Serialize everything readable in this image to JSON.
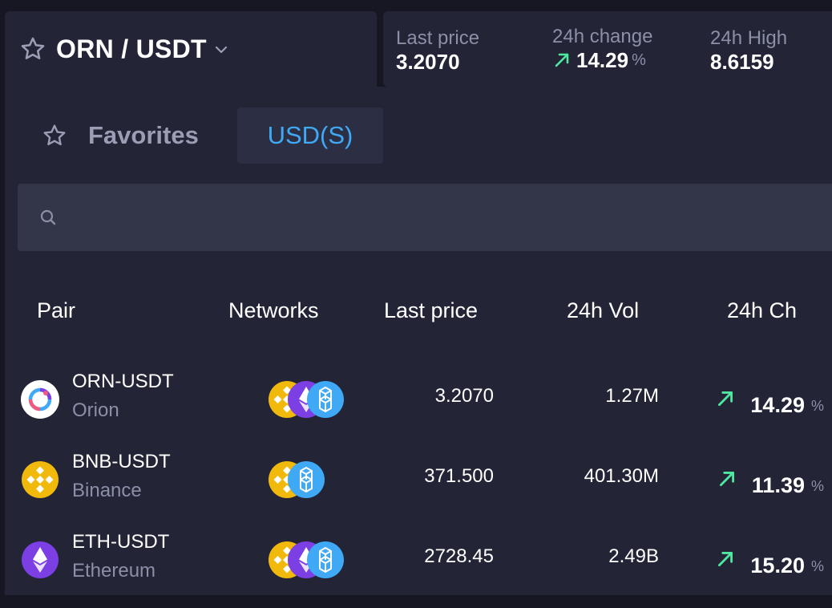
{
  "header": {
    "pair": "ORN / USDT"
  },
  "stats": {
    "last_price_label": "Last price",
    "last_price_value": "3.2070",
    "change_label": "24h change",
    "change_value": "14.29",
    "change_unit": "%",
    "high_label": "24h High",
    "high_value": "8.6159"
  },
  "tabs": {
    "favorites": "Favorites",
    "usd": "USD(S)"
  },
  "search": {
    "placeholder": "",
    "value": ""
  },
  "columns": {
    "pair": "Pair",
    "networks": "Networks",
    "last_price": "Last price",
    "vol": "24h Vol",
    "change": "24h Ch"
  },
  "rows": [
    {
      "pair": "ORN-USDT",
      "name": "Orion",
      "price": "3.2070",
      "vol": "1.27M",
      "change": "14.29",
      "unit": "%",
      "logo": "orion-logo",
      "networks": [
        "bnb-network-icon",
        "eth-network-icon",
        "fantom-network-icon"
      ]
    },
    {
      "pair": "BNB-USDT",
      "name": "Binance",
      "price": "371.500",
      "vol": "401.30M",
      "change": "11.39",
      "unit": "%",
      "logo": "binance-logo",
      "networks": [
        "bnb-network-icon",
        "fantom-network-icon"
      ]
    },
    {
      "pair": "ETH-USDT",
      "name": "Ethereum",
      "price": "2728.45",
      "vol": "2.49B",
      "change": "15.20",
      "unit": "%",
      "logo": "ethereum-logo",
      "networks": [
        "bnb-network-icon",
        "eth-network-icon",
        "fantom-network-icon"
      ]
    }
  ],
  "colors": {
    "accent": "#3fa9f5",
    "positive": "#4ee8a0",
    "bnb": "#f0b90b",
    "eth": "#7b3fe4",
    "fantom": "#3fa9f5"
  }
}
